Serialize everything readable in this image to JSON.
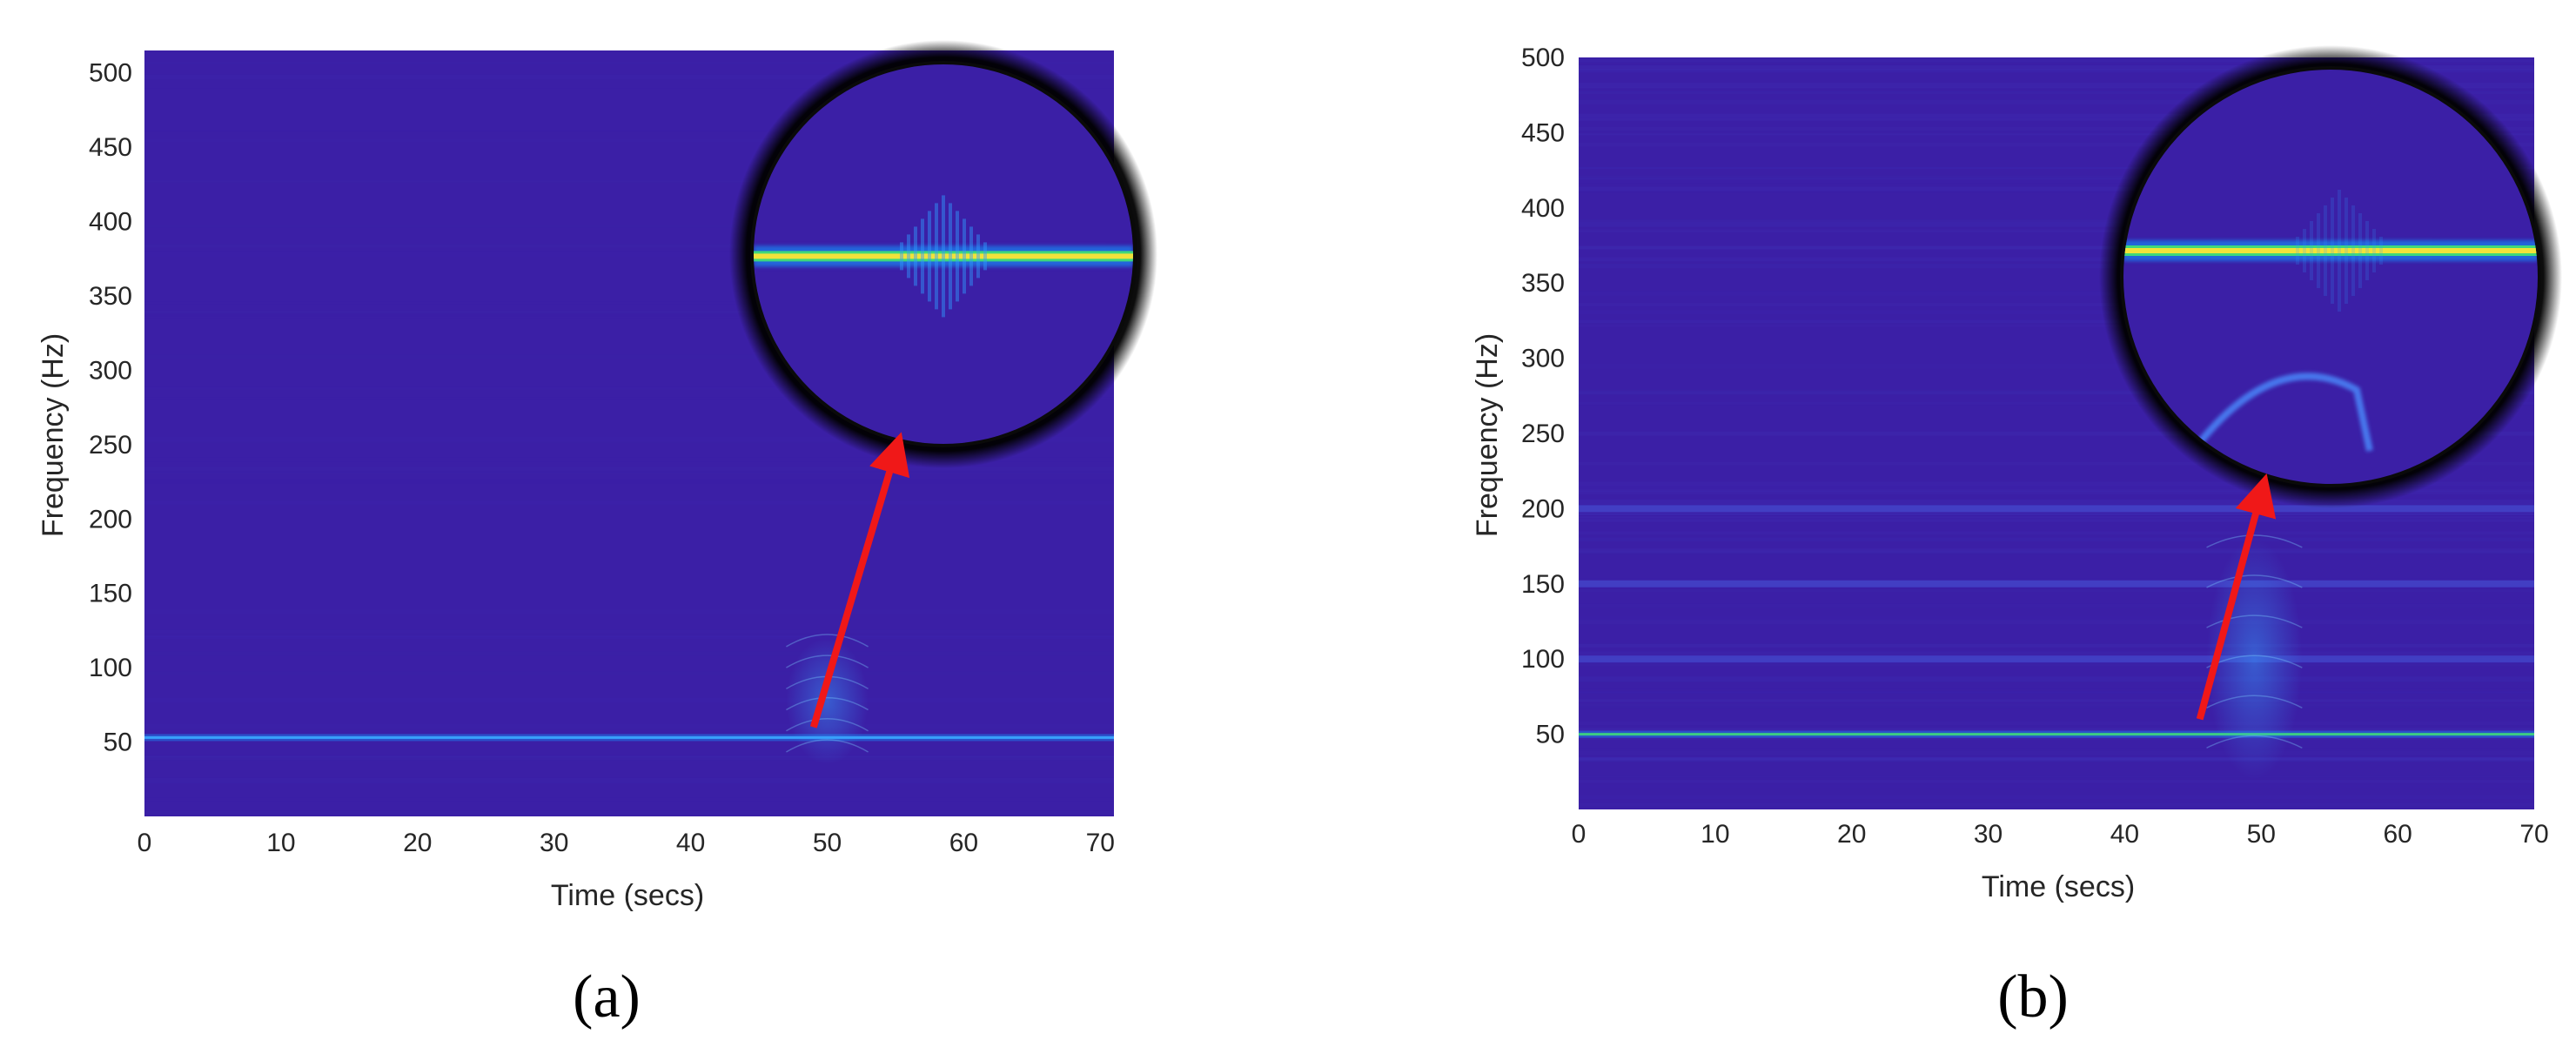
{
  "colors": {
    "background": "#3b1fa6",
    "line_dim": "#1f78e8",
    "line_core": "#f2e23a",
    "line_mid": "#3fd87a",
    "arrow": "#f01818",
    "lens_ring": "#0a0a0a"
  },
  "chart_data": [
    {
      "type": "heatmap",
      "panel_label": "(a)",
      "xlabel": "Time (secs)",
      "ylabel": "Frequency (Hz)",
      "xlim": [
        0,
        71
      ],
      "ylim": [
        0,
        515
      ],
      "xticks": [
        0,
        10,
        20,
        30,
        40,
        50,
        60,
        70
      ],
      "yticks": [
        50,
        100,
        150,
        200,
        250,
        300,
        350,
        400,
        450,
        500
      ],
      "grid": false,
      "bands": [
        {
          "freq": 53,
          "intensity": "medium"
        }
      ],
      "bursts": [
        {
          "time_start": 47,
          "time_end": 53,
          "freq_low": 35,
          "freq_high": 120
        }
      ],
      "zoom": {
        "time_center": 56,
        "freq_center": 380,
        "band_freq": 378,
        "burst_time": 56,
        "arc": false
      },
      "arrow": {
        "from": [
          49,
          60
        ],
        "to": [
          55,
          245
        ]
      }
    },
    {
      "type": "heatmap",
      "panel_label": "(b)",
      "xlabel": "Time (secs)",
      "ylabel": "Frequency (Hz)",
      "xlim": [
        0,
        70
      ],
      "ylim": [
        0,
        500
      ],
      "xticks": [
        0,
        10,
        20,
        30,
        40,
        50,
        60,
        70
      ],
      "yticks": [
        50,
        100,
        150,
        200,
        250,
        300,
        350,
        400,
        450,
        500
      ],
      "grid": false,
      "bands": [
        {
          "freq": 50,
          "intensity": "medium"
        },
        {
          "freq": 100,
          "intensity": "weak"
        },
        {
          "freq": 150,
          "intensity": "weak"
        },
        {
          "freq": 200,
          "intensity": "weak"
        }
      ],
      "bursts": [
        {
          "time_start": 46,
          "time_end": 53,
          "freq_low": 20,
          "freq_high": 180
        }
      ],
      "zoom": {
        "time_center": 55,
        "freq_center": 350,
        "band_freq": 350,
        "burst_time": 56,
        "arc": true
      },
      "arrow": {
        "from": [
          45.5,
          60
        ],
        "to": [
          50,
          210
        ]
      }
    }
  ]
}
